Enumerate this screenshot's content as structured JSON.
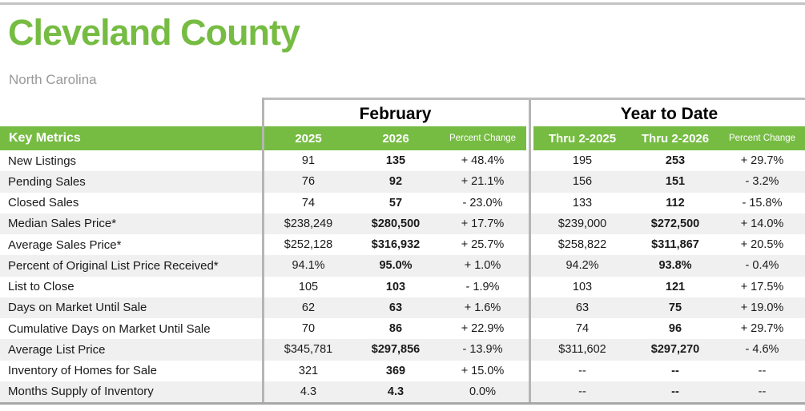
{
  "page": {
    "title": "Cleveland County",
    "subtitle": "North Carolina"
  },
  "colors": {
    "green": "#76BC43",
    "row_stripe": "#F0F0F0",
    "divider_gray": "#B5B5B5",
    "subtitle_gray": "#999999"
  },
  "table": {
    "section_headers": {
      "february": "February",
      "ytd": "Year to Date"
    },
    "columns": {
      "key_metrics": "Key Metrics",
      "feb_2025": "2025",
      "feb_2026": "2026",
      "feb_pct": "Percent Change",
      "ytd_2025": "Thru 2-2025",
      "ytd_2026": "Thru 2-2026",
      "ytd_pct": "Percent Change"
    },
    "rows": [
      {
        "metric": "New Listings",
        "feb_2025": "91",
        "feb_2026": "135",
        "feb_pct": "+ 48.4%",
        "ytd_2025": "195",
        "ytd_2026": "253",
        "ytd_pct": "+ 29.7%"
      },
      {
        "metric": "Pending Sales",
        "feb_2025": "76",
        "feb_2026": "92",
        "feb_pct": "+ 21.1%",
        "ytd_2025": "156",
        "ytd_2026": "151",
        "ytd_pct": "- 3.2%"
      },
      {
        "metric": "Closed Sales",
        "feb_2025": "74",
        "feb_2026": "57",
        "feb_pct": "- 23.0%",
        "ytd_2025": "133",
        "ytd_2026": "112",
        "ytd_pct": "- 15.8%"
      },
      {
        "metric": "Median Sales Price*",
        "feb_2025": "$238,249",
        "feb_2026": "$280,500",
        "feb_pct": "+ 17.7%",
        "ytd_2025": "$239,000",
        "ytd_2026": "$272,500",
        "ytd_pct": "+ 14.0%"
      },
      {
        "metric": "Average Sales Price*",
        "feb_2025": "$252,128",
        "feb_2026": "$316,932",
        "feb_pct": "+ 25.7%",
        "ytd_2025": "$258,822",
        "ytd_2026": "$311,867",
        "ytd_pct": "+ 20.5%"
      },
      {
        "metric": "Percent of Original List Price Received*",
        "feb_2025": "94.1%",
        "feb_2026": "95.0%",
        "feb_pct": "+ 1.0%",
        "ytd_2025": "94.2%",
        "ytd_2026": "93.8%",
        "ytd_pct": "- 0.4%"
      },
      {
        "metric": "List to Close",
        "feb_2025": "105",
        "feb_2026": "103",
        "feb_pct": "- 1.9%",
        "ytd_2025": "103",
        "ytd_2026": "121",
        "ytd_pct": "+ 17.5%"
      },
      {
        "metric": "Days on Market Until Sale",
        "feb_2025": "62",
        "feb_2026": "63",
        "feb_pct": "+ 1.6%",
        "ytd_2025": "63",
        "ytd_2026": "75",
        "ytd_pct": "+ 19.0%"
      },
      {
        "metric": "Cumulative Days on Market Until Sale",
        "feb_2025": "70",
        "feb_2026": "86",
        "feb_pct": "+ 22.9%",
        "ytd_2025": "74",
        "ytd_2026": "96",
        "ytd_pct": "+ 29.7%"
      },
      {
        "metric": "Average List Price",
        "feb_2025": "$345,781",
        "feb_2026": "$297,856",
        "feb_pct": "- 13.9%",
        "ytd_2025": "$311,602",
        "ytd_2026": "$297,270",
        "ytd_pct": "- 4.6%"
      },
      {
        "metric": "Inventory of Homes for Sale",
        "feb_2025": "321",
        "feb_2026": "369",
        "feb_pct": "+ 15.0%",
        "ytd_2025": "--",
        "ytd_2026": "--",
        "ytd_pct": "--"
      },
      {
        "metric": "Months Supply of Inventory",
        "feb_2025": "4.3",
        "feb_2026": "4.3",
        "feb_pct": "0.0%",
        "ytd_2025": "--",
        "ytd_2026": "--",
        "ytd_pct": "--"
      }
    ]
  }
}
